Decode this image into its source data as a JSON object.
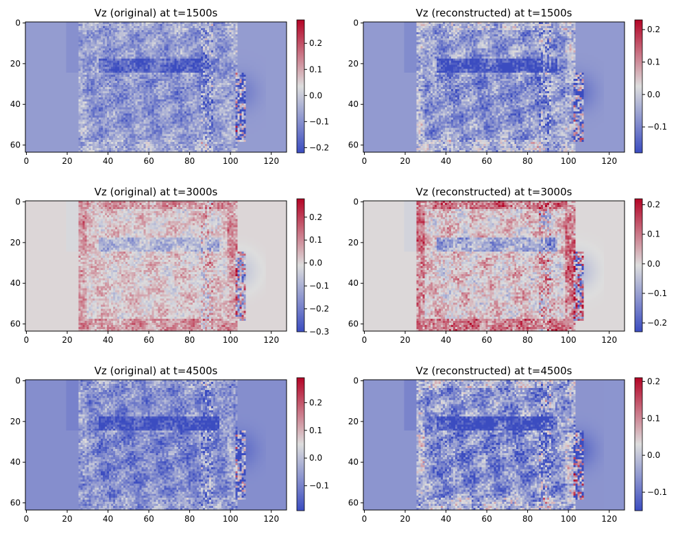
{
  "figure": {
    "colormap": "coolwarm",
    "colors": {
      "low": "#3b4cc0",
      "mid": "#dddddd",
      "high": "#b40426"
    }
  },
  "chart_data": [
    {
      "type": "heatmap",
      "title": "Vz (original) at t=1500s",
      "xticks": [
        0,
        20,
        40,
        60,
        80,
        100,
        120
      ],
      "yticks": [
        0,
        20,
        40,
        60
      ],
      "xlim": [
        -0.5,
        127.5
      ],
      "ylim": [
        63.5,
        -0.5
      ],
      "colorbar": {
        "vmin": -0.22,
        "vmax": 0.29,
        "ticks": [
          -0.2,
          -0.1,
          0.0,
          0.1,
          0.2
        ],
        "tick_labels": [
          "−0.2",
          "−0.1",
          "0.0",
          "0.1",
          "0.2"
        ]
      },
      "background": -0.08
    },
    {
      "type": "heatmap",
      "title": "Vz (reconstructed) at t=1500s",
      "xticks": [
        0,
        20,
        40,
        60,
        80,
        100,
        120
      ],
      "yticks": [
        0,
        20,
        40,
        60
      ],
      "xlim": [
        -0.5,
        127.5
      ],
      "ylim": [
        63.5,
        -0.5
      ],
      "colorbar": {
        "vmin": -0.18,
        "vmax": 0.23,
        "ticks": [
          -0.1,
          0.0,
          0.1,
          0.2
        ],
        "tick_labels": [
          "−0.1",
          "0.0",
          "0.1",
          "0.2"
        ]
      },
      "background": -0.07
    },
    {
      "type": "heatmap",
      "title": "Vz (original) at t=3000s",
      "xticks": [
        0,
        20,
        40,
        60,
        80,
        100,
        120
      ],
      "yticks": [
        0,
        20,
        40,
        60
      ],
      "xlim": [
        -0.5,
        127.5
      ],
      "ylim": [
        63.5,
        -0.5
      ],
      "colorbar": {
        "vmin": -0.3,
        "vmax": 0.28,
        "ticks": [
          -0.3,
          -0.2,
          -0.1,
          0.0,
          0.1,
          0.2
        ],
        "tick_labels": [
          "−0.3",
          "−0.2",
          "−0.1",
          "0.0",
          "0.1",
          "0.2"
        ]
      },
      "background": 0.0
    },
    {
      "type": "heatmap",
      "title": "Vz (reconstructed) at t=3000s",
      "xticks": [
        0,
        20,
        40,
        60,
        80,
        100,
        120
      ],
      "yticks": [
        0,
        20,
        40,
        60
      ],
      "xlim": [
        -0.5,
        127.5
      ],
      "ylim": [
        63.5,
        -0.5
      ],
      "colorbar": {
        "vmin": -0.23,
        "vmax": 0.22,
        "ticks": [
          -0.2,
          -0.1,
          0.0,
          0.1,
          0.2
        ],
        "tick_labels": [
          "−0.2",
          "−0.1",
          "0.0",
          "0.1",
          "0.2"
        ]
      },
      "background": 0.0
    },
    {
      "type": "heatmap",
      "title": "Vz (original) at t=4500s",
      "xticks": [
        0,
        20,
        40,
        60,
        80,
        100,
        120
      ],
      "yticks": [
        0,
        20,
        40,
        60
      ],
      "xlim": [
        -0.5,
        127.5
      ],
      "ylim": [
        63.5,
        -0.5
      ],
      "colorbar": {
        "vmin": -0.19,
        "vmax": 0.29,
        "ticks": [
          -0.1,
          0.0,
          0.1,
          0.2
        ],
        "tick_labels": [
          "−0.1",
          "0.0",
          "0.1",
          "0.2"
        ]
      },
      "background": -0.08
    },
    {
      "type": "heatmap",
      "title": "Vz (reconstructed) at t=4500s",
      "xticks": [
        0,
        20,
        40,
        60,
        80,
        100,
        120
      ],
      "yticks": [
        0,
        20,
        40,
        60
      ],
      "xlim": [
        -0.5,
        127.5
      ],
      "ylim": [
        63.5,
        -0.5
      ],
      "colorbar": {
        "vmin": -0.15,
        "vmax": 0.21,
        "ticks": [
          -0.1,
          0.0,
          0.1,
          0.2
        ],
        "tick_labels": [
          "−0.1",
          "0.0",
          "0.1",
          "0.2"
        ]
      },
      "background": -0.06
    }
  ]
}
